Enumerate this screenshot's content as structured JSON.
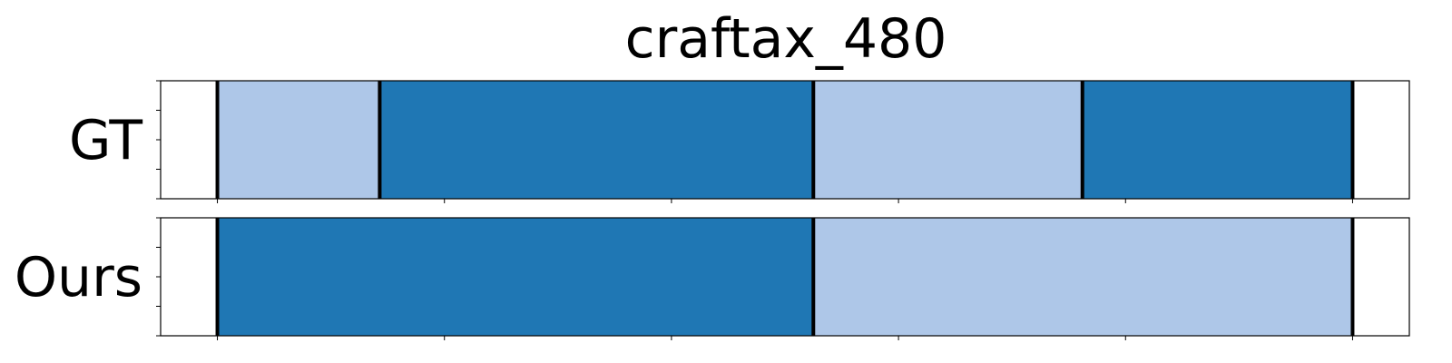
{
  "chart_data": {
    "type": "bar",
    "title": "craftax_480",
    "xlim": [
      -0.05,
      1.05
    ],
    "x_ticks": [
      0,
      0.2,
      0.4,
      0.6,
      0.8,
      1.0
    ],
    "x_tick_labels_shown": false,
    "y_tick_labels_shown": false,
    "colors": {
      "dark": "#1f77b4",
      "light": "#aec7e8",
      "boundary": "#000000"
    },
    "rows": [
      {
        "label": "GT",
        "segments": [
          {
            "start": 0.0,
            "end": 0.143,
            "color": "light"
          },
          {
            "start": 0.143,
            "end": 0.525,
            "color": "dark"
          },
          {
            "start": 0.525,
            "end": 0.762,
            "color": "light"
          },
          {
            "start": 0.762,
            "end": 1.0,
            "color": "dark"
          }
        ],
        "boundaries": [
          0.0,
          0.143,
          0.525,
          0.762,
          1.0
        ]
      },
      {
        "label": "Ours",
        "segments": [
          {
            "start": 0.0,
            "end": 0.525,
            "color": "dark"
          },
          {
            "start": 0.525,
            "end": 1.0,
            "color": "light"
          }
        ],
        "boundaries": [
          0.0,
          0.525,
          1.0
        ]
      }
    ]
  }
}
